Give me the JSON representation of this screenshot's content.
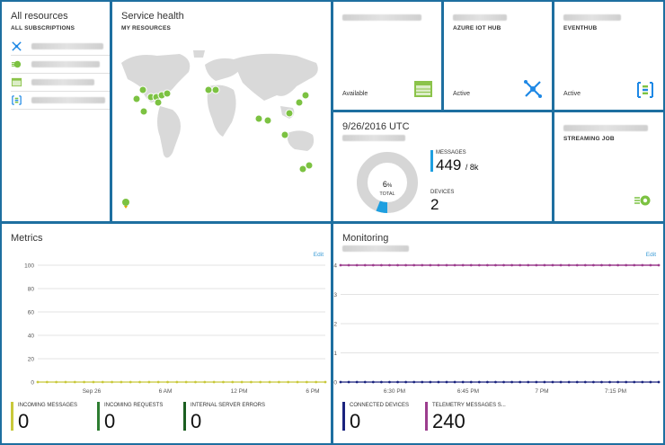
{
  "all_resources": {
    "title": "All resources",
    "subtitle": "ALL SUBSCRIPTIONS",
    "items": [
      {
        "icon": "iot-hub-icon"
      },
      {
        "icon": "stream-analytics-icon"
      },
      {
        "icon": "storage-table-icon"
      },
      {
        "icon": "event-hub-icon"
      }
    ]
  },
  "service_health": {
    "title": "Service health",
    "subtitle": "MY RESOURCES"
  },
  "storage_tile": {
    "status": "Available"
  },
  "iot_hub_tile": {
    "type": "AZURE IOT HUB",
    "status": "Active"
  },
  "eventhub_tile": {
    "type": "EVENTHUB",
    "status": "Active"
  },
  "devices_tile": {
    "date": "9/26/2016 UTC",
    "donut_percent": "6",
    "donut_unit": "%",
    "donut_label": "TOTAL",
    "messages_label": "MESSAGES",
    "messages_value": "449",
    "messages_limit": "/ 8k",
    "devices_label": "DEVICES",
    "devices_value": "2",
    "fill_fraction": 0.06
  },
  "streaming_tile": {
    "type": "STREAMING JOB"
  },
  "metrics": {
    "title": "Metrics",
    "edit": "Edit",
    "y_ticks": [
      "100",
      "80",
      "60",
      "40",
      "20",
      "0"
    ],
    "x_ticks": [
      "Sep 26",
      "6 AM",
      "12 PM",
      "6 PM"
    ],
    "kpis": [
      {
        "label": "INCOMING MESSAGES",
        "value": "0",
        "color": "#c8c83a"
      },
      {
        "label": "INCOMING REQUESTS",
        "value": "0",
        "color": "#2e7d32"
      },
      {
        "label": "INTERNAL SERVER ERRORS",
        "value": "0",
        "color": "#1b5e20"
      }
    ]
  },
  "monitoring": {
    "title": "Monitoring",
    "edit": "Edit",
    "y_ticks": [
      "4",
      "3",
      "2",
      "1",
      "0"
    ],
    "x_ticks": [
      "6:30 PM",
      "6:45 PM",
      "7 PM",
      "7:15 PM"
    ],
    "kpis": [
      {
        "label": "CONNECTED DEVICES",
        "value": "0",
        "color": "#1a237e"
      },
      {
        "label": "TELEMETRY MESSAGES S...",
        "value": "240",
        "color": "#9c3d8e"
      }
    ]
  },
  "chart_data": [
    {
      "type": "line",
      "series": [
        {
          "values": [
            0,
            0,
            0,
            0,
            0,
            0,
            0,
            0,
            0,
            0,
            0,
            0,
            0,
            0,
            0,
            0,
            0,
            0,
            0,
            0,
            0,
            0,
            0,
            0,
            0,
            0,
            0,
            0,
            0,
            0,
            0,
            0
          ]
        }
      ],
      "ylim": [
        0,
        100
      ]
    },
    {
      "type": "line",
      "series": [
        {
          "values": [
            4,
            4,
            4,
            4,
            4,
            4,
            4,
            4,
            4,
            4,
            4,
            4,
            4,
            4,
            4,
            4,
            4,
            4,
            4,
            4,
            4,
            4,
            4,
            4,
            4,
            4,
            4,
            4,
            4,
            4,
            4,
            4,
            4,
            4,
            4,
            4,
            4,
            4,
            4,
            4
          ]
        },
        {
          "values": [
            0,
            0,
            0,
            0,
            0,
            0,
            0,
            0,
            0,
            0,
            0,
            0,
            0,
            0,
            0,
            0,
            0,
            0,
            0,
            0,
            0,
            0,
            0,
            0,
            0,
            0,
            0,
            0,
            0,
            0,
            0,
            0,
            0,
            0,
            0,
            0,
            0,
            0,
            0,
            0
          ]
        }
      ],
      "ylim": [
        0,
        4
      ]
    }
  ]
}
